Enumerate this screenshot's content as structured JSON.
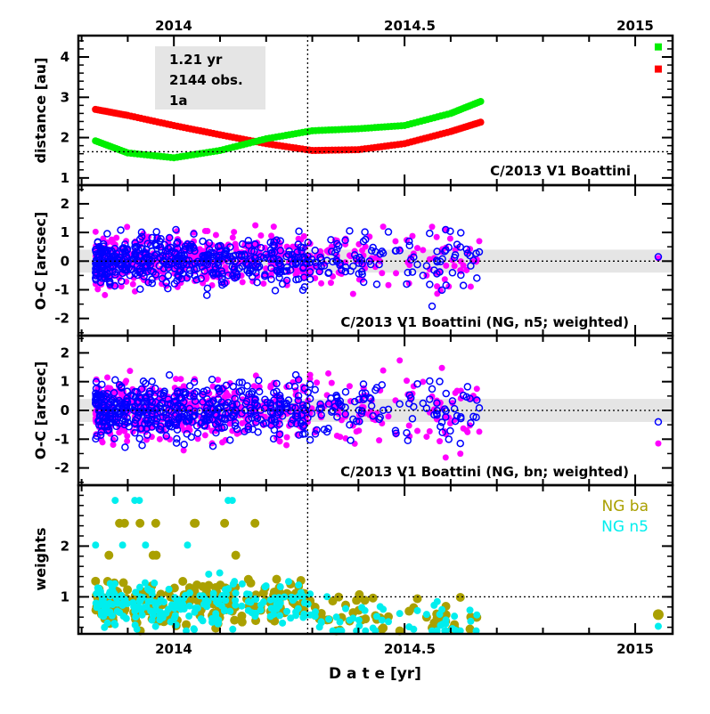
{
  "chart_data": [
    {
      "type": "line",
      "panel": "distance",
      "ylabel": "distance [au]",
      "ylim": [
        0.82,
        4.53
      ],
      "yticks": [
        "1",
        "2",
        "3",
        "4"
      ],
      "title": "C/2013 V1 Boattini",
      "info_box": [
        "1.21 yr",
        "2144 obs.",
        "1a"
      ],
      "hline": 1.65,
      "series": [
        {
          "name": "red",
          "color": "#ff0000",
          "x": [
            2013.83,
            2013.9,
            2014.0,
            2014.1,
            2014.2,
            2014.3,
            2014.4,
            2014.5,
            2014.6,
            2014.67
          ],
          "y": [
            2.7,
            2.55,
            2.3,
            2.07,
            1.85,
            1.68,
            1.7,
            1.85,
            2.15,
            2.4
          ],
          "extra": [
            [
              2015.05,
              3.7
            ]
          ]
        },
        {
          "name": "green",
          "color": "#00ee00",
          "x": [
            2013.83,
            2013.9,
            2014.0,
            2014.1,
            2014.2,
            2014.3,
            2014.4,
            2014.5,
            2014.6,
            2014.67
          ],
          "y": [
            1.92,
            1.62,
            1.5,
            1.68,
            1.97,
            2.17,
            2.22,
            2.3,
            2.6,
            2.92
          ],
          "extra": [
            [
              2015.05,
              4.25
            ]
          ]
        }
      ]
    },
    {
      "type": "scatter",
      "panel": "oc-n5",
      "ylabel": "O-C [arcsec]",
      "ylim": [
        -2.6,
        2.65
      ],
      "yticks": [
        "-2",
        "-1",
        "0",
        "1",
        "2"
      ],
      "title": "C/2013 V1 Boattini (NG, n5; weighted)",
      "band": [
        -0.4,
        0.4
      ],
      "hline": 0,
      "series": [
        {
          "name": "RA residuals",
          "color": "#ff00ff",
          "marker": "filled",
          "spread": 0.45,
          "outlier": [
            2015.05,
            0.1
          ]
        },
        {
          "name": "Dec residuals",
          "color": "#0000ff",
          "marker": "open",
          "spread": 0.4,
          "outlier": [
            2015.05,
            0.15
          ]
        }
      ]
    },
    {
      "type": "scatter",
      "panel": "oc-bn",
      "ylabel": "O-C [arcsec]",
      "ylim": [
        -2.6,
        2.6
      ],
      "yticks": [
        "-2",
        "-1",
        "0",
        "1",
        "2"
      ],
      "title": "C/2013 V1 Boattini (NG, bn; weighted)",
      "band": [
        -0.4,
        0.4
      ],
      "hline": 0,
      "series": [
        {
          "name": "RA residuals",
          "color": "#ff00ff",
          "marker": "filled",
          "spread": 0.5,
          "outlier": [
            2015.05,
            -1.15
          ]
        },
        {
          "name": "Dec residuals",
          "color": "#0000ff",
          "marker": "open",
          "spread": 0.45,
          "outlier": [
            2015.05,
            -0.4
          ]
        }
      ]
    },
    {
      "type": "scatter",
      "panel": "weights",
      "ylabel": "weights",
      "ylim": [
        0.27,
        3.2
      ],
      "yticks": [
        "1",
        "2"
      ],
      "hline": 1,
      "legend": "top-right",
      "series": [
        {
          "name": "NG ba",
          "color": "#aaa000",
          "levels": [
            2.45,
            1.82
          ],
          "outlier": [
            2015.05,
            0.65
          ]
        },
        {
          "name": "NG n5",
          "color": "#00eeee",
          "levels": [
            2.9,
            2.02
          ],
          "outlier": [
            2015.05,
            0.42
          ]
        }
      ]
    }
  ],
  "x_axis": {
    "xlabel": "D a t e [yr]",
    "xlim": [
      2013.793,
      2015.081
    ],
    "ticks": [
      {
        "v": 2014,
        "label": "2014"
      },
      {
        "v": 2014.5,
        "label": "2014.5"
      },
      {
        "v": 2015,
        "label": "2015"
      }
    ],
    "vline": 2014.29,
    "obs_range": [
      2013.83,
      2014.67
    ]
  }
}
